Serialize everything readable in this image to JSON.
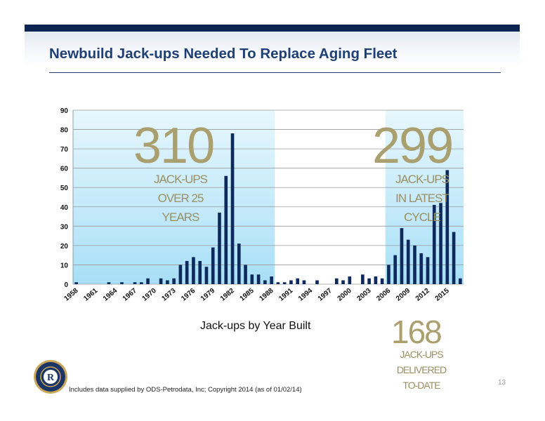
{
  "title": "Newbuild Jack-ups Needed To Replace Aging Fleet",
  "callouts": {
    "left": {
      "number": "310",
      "lines": [
        "JACK-UPS",
        "OVER 25",
        "YEARS"
      ]
    },
    "right": {
      "number": "299",
      "lines": [
        "JACK-UPS",
        "IN LATEST",
        "CYCLE"
      ]
    },
    "bottom": {
      "number": "168",
      "lines": [
        "JACK-UPS",
        "DELIVERED",
        "TO-DATE"
      ]
    }
  },
  "footnote": "Includes data supplied by ODS-Petrodata, Inc; Copyright 2014 (as of 01/02/14)",
  "page_number": "13",
  "logo": {
    "icon": "company-seal-icon",
    "letter": "R"
  },
  "colors": {
    "bar": "#0e2a5c",
    "highlight_band": "#a8dff7",
    "accent": "#aa9f6e",
    "title": "#1f3f77",
    "top_bar": "#0b2450"
  },
  "chart_data": {
    "type": "bar",
    "xlabel": "Jack-ups by Year Built",
    "ylabel": "",
    "ylim": [
      0,
      90
    ],
    "yticks": [
      0,
      10,
      20,
      30,
      40,
      50,
      60,
      70,
      80,
      90
    ],
    "xtick_labels": [
      "1958",
      "1961",
      "1964",
      "1967",
      "1970",
      "1973",
      "1976",
      "1979",
      "1982",
      "1985",
      "1988",
      "1991",
      "1994",
      "1997",
      "2000",
      "2003",
      "2006",
      "2009",
      "2012",
      "2015"
    ],
    "grid": true,
    "highlight_ranges": [
      [
        1958,
        1988
      ],
      [
        2006,
        2017
      ]
    ],
    "x": [
      1958,
      1959,
      1960,
      1961,
      1962,
      1963,
      1964,
      1965,
      1966,
      1967,
      1968,
      1969,
      1970,
      1971,
      1972,
      1973,
      1974,
      1975,
      1976,
      1977,
      1978,
      1979,
      1980,
      1981,
      1982,
      1983,
      1984,
      1985,
      1986,
      1987,
      1988,
      1989,
      1990,
      1991,
      1992,
      1993,
      1994,
      1995,
      1996,
      1997,
      1998,
      1999,
      2000,
      2001,
      2002,
      2003,
      2004,
      2005,
      2006,
      2007,
      2008,
      2009,
      2010,
      2011,
      2012,
      2013,
      2014,
      2015,
      2016,
      2017
    ],
    "values": [
      1,
      0,
      0,
      0,
      0,
      1,
      0,
      1,
      0,
      1,
      1,
      3,
      0,
      3,
      2,
      3,
      10,
      12,
      14,
      12,
      9,
      19,
      37,
      56,
      78,
      21,
      10,
      5,
      5,
      2,
      4,
      1,
      1,
      2,
      3,
      2,
      0,
      2,
      0,
      0,
      3,
      2,
      4,
      0,
      5,
      3,
      4,
      3,
      10,
      15,
      29,
      23,
      20,
      16,
      14,
      41,
      42,
      59,
      27,
      3
    ]
  }
}
